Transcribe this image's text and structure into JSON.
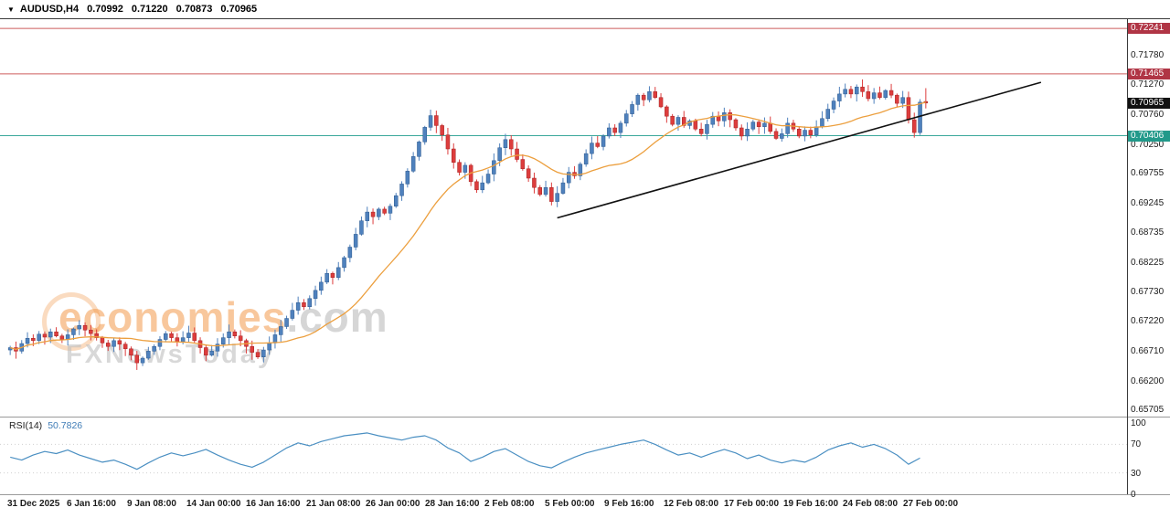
{
  "header": {
    "dropdown_icon": "▼",
    "symbol": "AUDUSD,H4",
    "open": "0.70992",
    "high": "0.71220",
    "low": "0.70873",
    "close": "0.70965"
  },
  "watermark": {
    "brand_orange": "economies",
    "brand_suffix": ".com",
    "tagline": "FXNewsToday"
  },
  "chart_data": {
    "type": "candlestick",
    "title": "AUDUSD H4 with SMA(20), ascending trendline, support/resistance levels and RSI(14)",
    "symbol": "AUDUSD",
    "timeframe": "H4",
    "grid": false,
    "price_range": [
      0.656,
      0.724
    ],
    "x_tick_labels": [
      "31 Dec 2025",
      "6 Jan 16:00",
      "9 Jan 08:00",
      "14 Jan 00:00",
      "16 Jan 16:00",
      "21 Jan 08:00",
      "26 Jan 00:00",
      "28 Jan 16:00",
      "2 Feb 08:00",
      "5 Feb 00:00",
      "9 Feb 16:00",
      "12 Feb 08:00",
      "17 Feb 00:00",
      "19 Feb 16:00",
      "24 Feb 08:00",
      "27 Feb 00:00"
    ],
    "y_tick_labels": [
      "0.71780",
      "0.71270",
      "0.70760",
      "0.70250",
      "0.69755",
      "0.69245",
      "0.68735",
      "0.68225",
      "0.67730",
      "0.67220",
      "0.66710",
      "0.66200",
      "0.65705"
    ],
    "y_tags": [
      {
        "label": "0.72241",
        "price": 0.72241,
        "bg": "#b03545",
        "role": "resistance-price-tag"
      },
      {
        "label": "0.71465",
        "price": 0.71465,
        "bg": "#b03545",
        "role": "resistance-price-tag"
      },
      {
        "label": "0.70965",
        "price": 0.70965,
        "bg": "#111111",
        "role": "current-price-tag"
      },
      {
        "label": "0.70406",
        "price": 0.70406,
        "bg": "#22998a",
        "role": "support-price-tag"
      }
    ],
    "hlines": [
      {
        "price": 0.72241,
        "color": "#cd5c5c",
        "role": "resistance"
      },
      {
        "price": 0.71465,
        "color": "#cd5c5c",
        "role": "resistance"
      },
      {
        "price": 0.70406,
        "color": "#3aa79b",
        "role": "support"
      }
    ],
    "trendline": {
      "from_index": 95,
      "from_price": 0.69,
      "to_index": 179,
      "to_price": 0.7132,
      "color": "#111111"
    },
    "moving_average": {
      "type": "SMA",
      "period": 20,
      "color": "#ec9f3e"
    },
    "colors": {
      "up": "#4f81bd",
      "up_border": "#2e5a8f",
      "down": "#dd3d3d",
      "down_border": "#a32222"
    },
    "last_candle_ohlc": [
      0.70992,
      0.7122,
      0.70873,
      0.70965
    ],
    "closes": [
      0.6678,
      0.6672,
      0.6685,
      0.6694,
      0.669,
      0.6701,
      0.6696,
      0.6705,
      0.6698,
      0.6692,
      0.67,
      0.671,
      0.6716,
      0.6708,
      0.6702,
      0.6695,
      0.6686,
      0.668,
      0.669,
      0.6684,
      0.6676,
      0.6665,
      0.6652,
      0.666,
      0.6672,
      0.668,
      0.6692,
      0.6702,
      0.6695,
      0.6688,
      0.6695,
      0.6703,
      0.669,
      0.6678,
      0.6665,
      0.6672,
      0.6684,
      0.6695,
      0.6705,
      0.6698,
      0.669,
      0.668,
      0.667,
      0.6662,
      0.6674,
      0.6686,
      0.67,
      0.6714,
      0.6728,
      0.6742,
      0.6755,
      0.6748,
      0.6762,
      0.6776,
      0.679,
      0.6805,
      0.6798,
      0.6815,
      0.6832,
      0.685,
      0.6872,
      0.6895,
      0.691,
      0.6902,
      0.6915,
      0.6908,
      0.692,
      0.6938,
      0.6958,
      0.698,
      0.7005,
      0.703,
      0.7055,
      0.7075,
      0.7058,
      0.7042,
      0.7018,
      0.6995,
      0.6978,
      0.699,
      0.6962,
      0.6948,
      0.696,
      0.6975,
      0.6998,
      0.702,
      0.7034,
      0.7018,
      0.7,
      0.6984,
      0.6968,
      0.6952,
      0.694,
      0.6952,
      0.6928,
      0.6942,
      0.696,
      0.6978,
      0.6972,
      0.6992,
      0.701,
      0.7028,
      0.7022,
      0.704,
      0.7054,
      0.7046,
      0.7062,
      0.7078,
      0.7094,
      0.711,
      0.7102,
      0.7116,
      0.7106,
      0.709,
      0.7074,
      0.706,
      0.7072,
      0.7058,
      0.7066,
      0.7052,
      0.7044,
      0.706,
      0.7074,
      0.7066,
      0.708,
      0.7068,
      0.7054,
      0.704,
      0.7052,
      0.7064,
      0.7056,
      0.7062,
      0.7048,
      0.7036,
      0.7044,
      0.7062,
      0.7052,
      0.704,
      0.705,
      0.7042,
      0.7056,
      0.707,
      0.7086,
      0.71,
      0.7112,
      0.712,
      0.7112,
      0.7124,
      0.7116,
      0.7104,
      0.7114,
      0.7106,
      0.7118,
      0.711,
      0.7096,
      0.7106,
      0.7068,
      0.7046,
      0.7098,
      0.70965
    ],
    "rsi": {
      "label": "RSI(14)",
      "value": 50.7826,
      "value_text": "50.7826",
      "color": "#4a8fc2",
      "y_ticks": [
        100,
        70,
        30,
        0
      ],
      "levels": [
        70,
        30
      ],
      "values": [
        52,
        48,
        55,
        60,
        57,
        62,
        55,
        50,
        45,
        48,
        42,
        35,
        44,
        52,
        58,
        54,
        58,
        63,
        55,
        48,
        42,
        38,
        45,
        55,
        65,
        72,
        68,
        74,
        78,
        82,
        84,
        86,
        82,
        79,
        76,
        80,
        82,
        76,
        65,
        58,
        46,
        52,
        60,
        64,
        55,
        46,
        40,
        37,
        45,
        52,
        58,
        62,
        66,
        70,
        73,
        76,
        70,
        62,
        55,
        58,
        52,
        58,
        63,
        58,
        50,
        55,
        48,
        44,
        48,
        45,
        52,
        62,
        68,
        72,
        66,
        70,
        64,
        55,
        42,
        50.78
      ]
    }
  }
}
